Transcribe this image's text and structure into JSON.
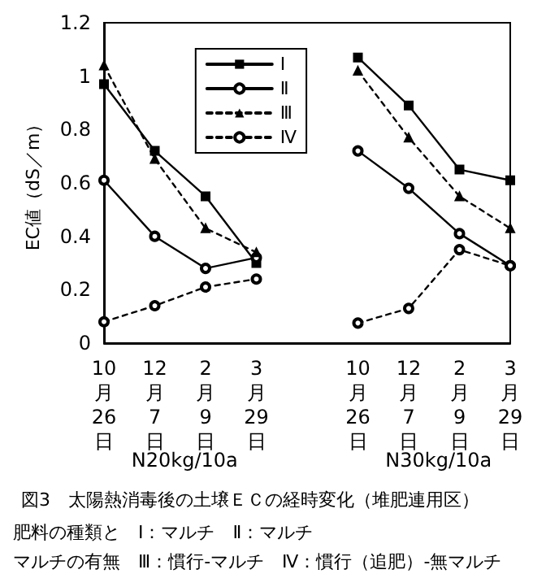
{
  "chart_data": {
    "type": "line",
    "title": "図3　太陽熱消毒後の土壌ＥＣの経時変化（堆肥連用区）",
    "ylabel": "EC値（dS／m）",
    "categories": [
      "10月26日",
      "12月7日",
      "2月9日",
      "3月29日",
      null,
      "10月26日",
      "12月7日",
      "2月9日",
      "3月29日"
    ],
    "series": [
      {
        "name": "Ⅰ",
        "color": "#000000",
        "marker": "square",
        "line_style": "solid",
        "values": [
          0.97,
          0.72,
          0.55,
          0.3,
          null,
          1.07,
          0.89,
          0.65,
          0.61
        ]
      },
      {
        "name": "Ⅱ",
        "color": "#000000",
        "marker": "circle",
        "line_style": "solid",
        "values": [
          0.61,
          0.4,
          0.28,
          0.32,
          null,
          0.72,
          0.58,
          0.41,
          0.29
        ]
      },
      {
        "name": "Ⅲ",
        "color": "#000000",
        "marker": "triangle",
        "line_style": "dashed",
        "values": [
          1.04,
          0.69,
          0.43,
          0.34,
          null,
          1.02,
          0.77,
          0.55,
          0.43
        ]
      },
      {
        "name": "Ⅳ",
        "color": "#000000",
        "marker": "circle",
        "line_style": "dashed",
        "values": [
          0.08,
          0.14,
          0.21,
          0.24,
          null,
          0.075,
          0.13,
          0.35,
          0.29
        ]
      }
    ],
    "ylim": [
      0,
      1.2
    ],
    "yticks": [
      0,
      0.2,
      0.4,
      0.6,
      0.8,
      1,
      1.2
    ],
    "grid": false,
    "legend": "top",
    "annotations": [
      "N20kg/10a",
      "N30kg/10a",
      "肥料の種類と　Ⅰ：マルチ　Ⅱ：マルチ",
      "マルチの有無　Ⅲ：慣行-マルチ　Ⅳ：慣行（追肥）-無マルチ"
    ]
  }
}
